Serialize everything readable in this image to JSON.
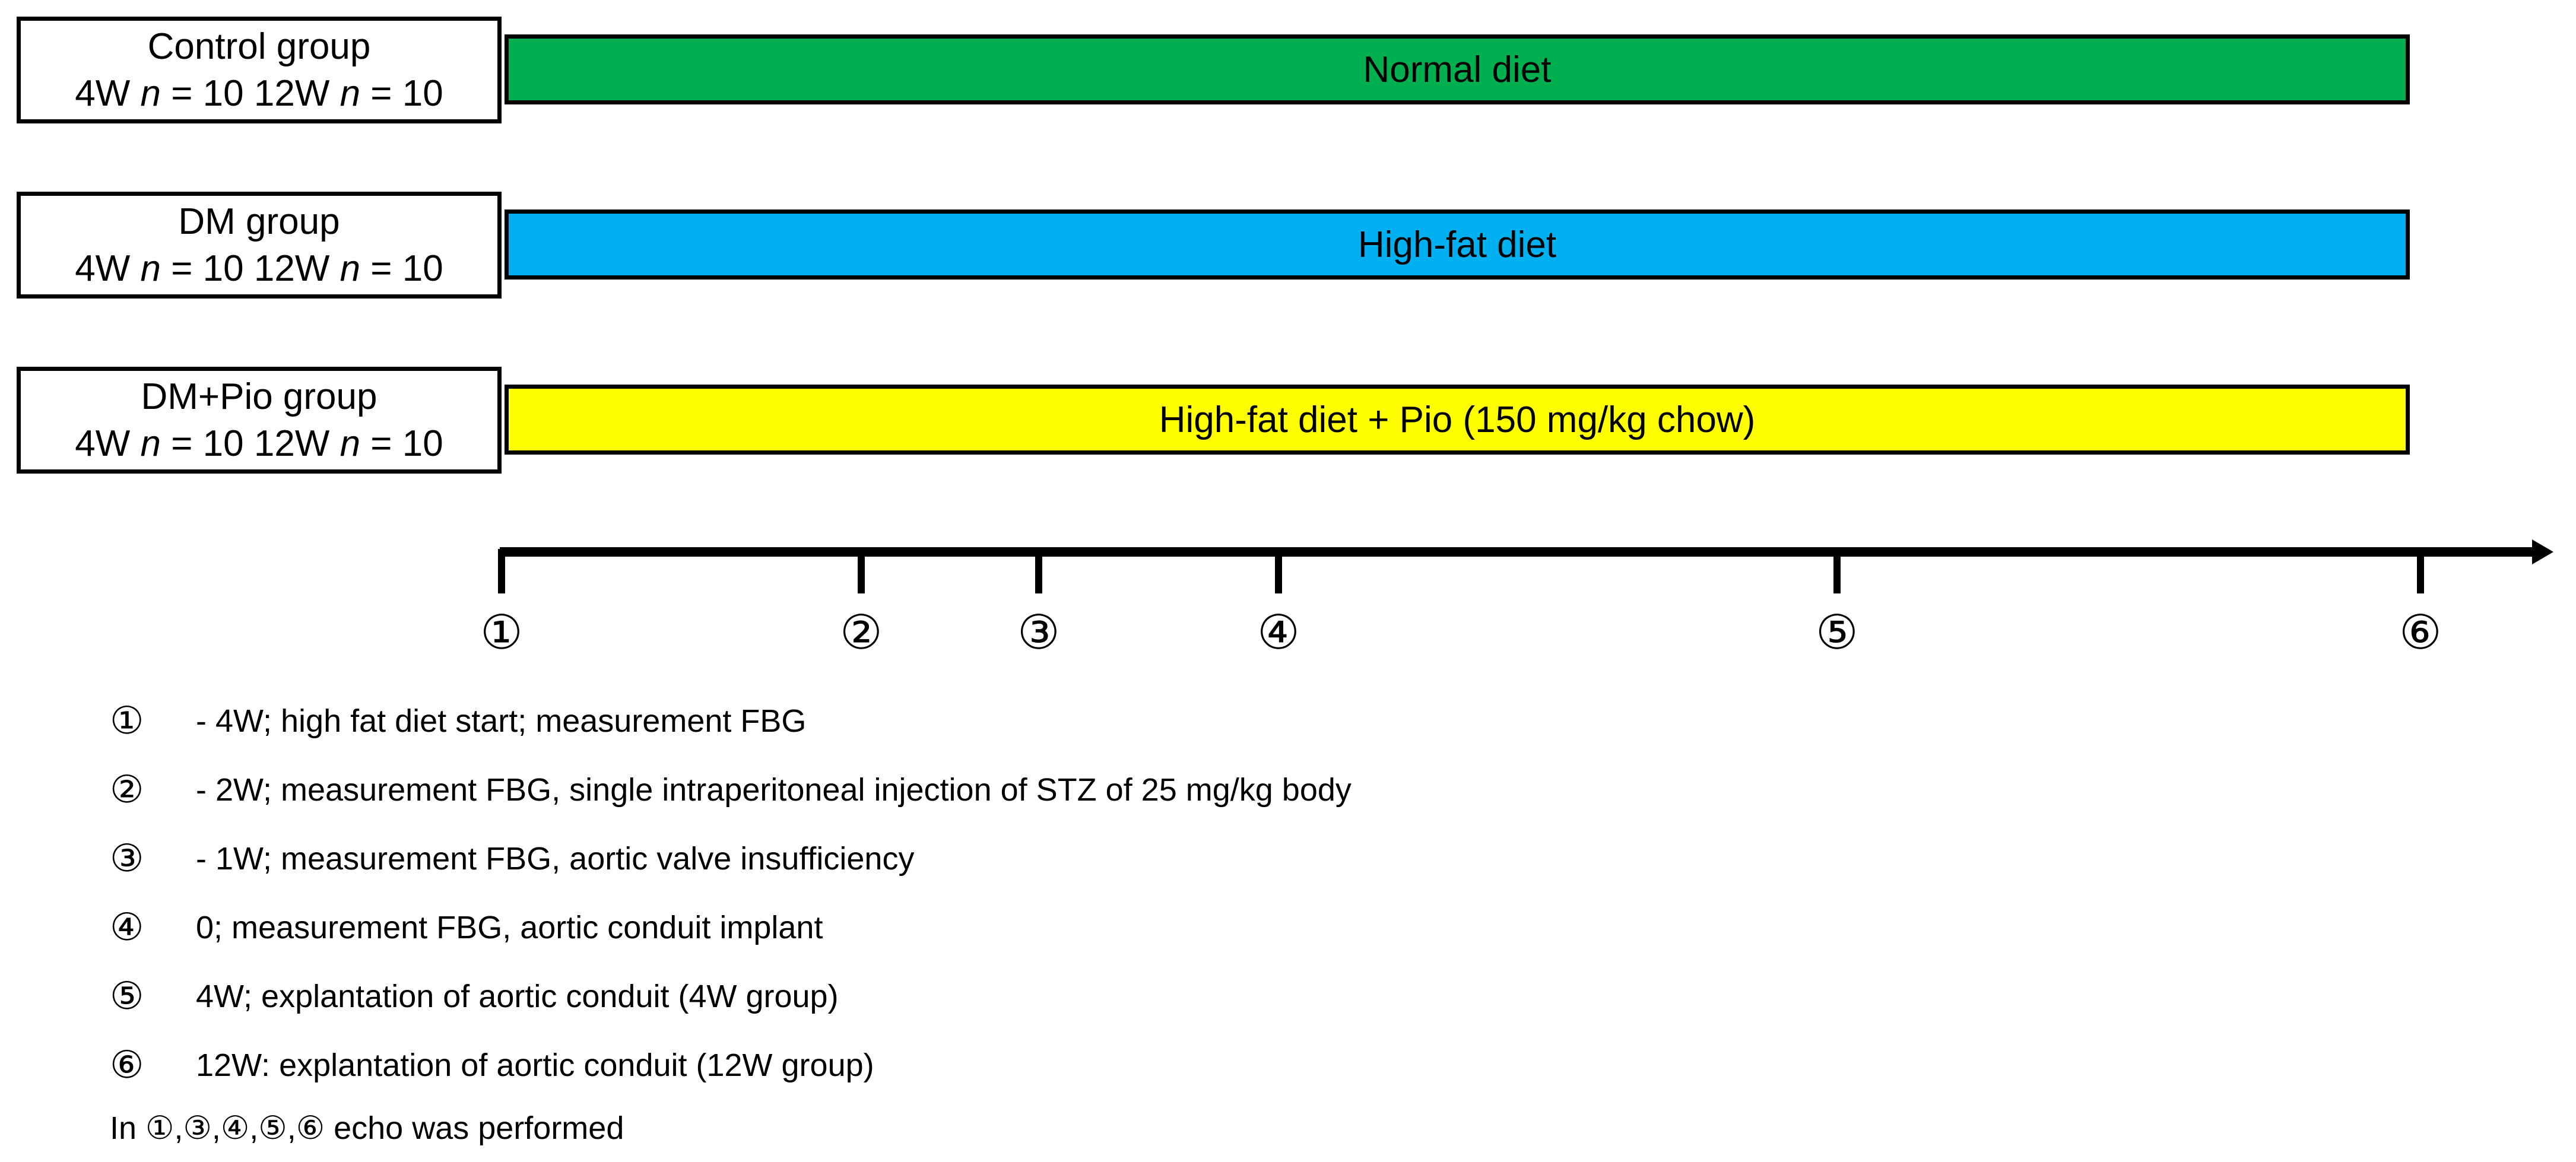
{
  "figure": {
    "groups": [
      {
        "name": "Control group",
        "counts": "4W n = 10 12W n = 10",
        "diet_label": "Normal diet",
        "diet_color": "#00B050"
      },
      {
        "name": "DM group",
        "counts": "4W n = 10 12W n = 10",
        "diet_label": "High-fat diet",
        "diet_color": "#00B0F0"
      },
      {
        "name": "DM+Pio group",
        "counts": "4W n = 10 12W n = 10",
        "diet_label": "High-fat diet + Pio (150 mg/kg chow)",
        "diet_color": "#FFFF00"
      }
    ],
    "timeline": {
      "type": "timeline",
      "ticks": [
        {
          "marker": "①",
          "x": "19.47%"
        },
        {
          "marker": "②",
          "x": "33.43%"
        },
        {
          "marker": "③",
          "x": "40.32%"
        },
        {
          "marker": "④",
          "x": "49.63%"
        },
        {
          "marker": "⑤",
          "x": "71.31%"
        },
        {
          "marker": "⑥",
          "x": "93.96%"
        }
      ]
    },
    "legend": {
      "items": [
        {
          "marker": "①",
          "text": "- 4W; high fat diet start; measurement FBG"
        },
        {
          "marker": "②",
          "text": "- 2W; measurement FBG, single intraperitoneal injection of STZ of 25 mg/kg body"
        },
        {
          "marker": "③",
          "text": "- 1W; measurement FBG, aortic valve insufficiency"
        },
        {
          "marker": "④",
          "text": "0; measurement FBG, aortic conduit implant"
        },
        {
          "marker": "⑤",
          "text": "4W; explantation of aortic conduit (4W group)"
        },
        {
          "marker": "⑥",
          "text": "12W: explantation of aortic conduit (12W group)"
        }
      ],
      "footnote": "In ①,③,④,⑤,⑥ echo was performed"
    }
  }
}
